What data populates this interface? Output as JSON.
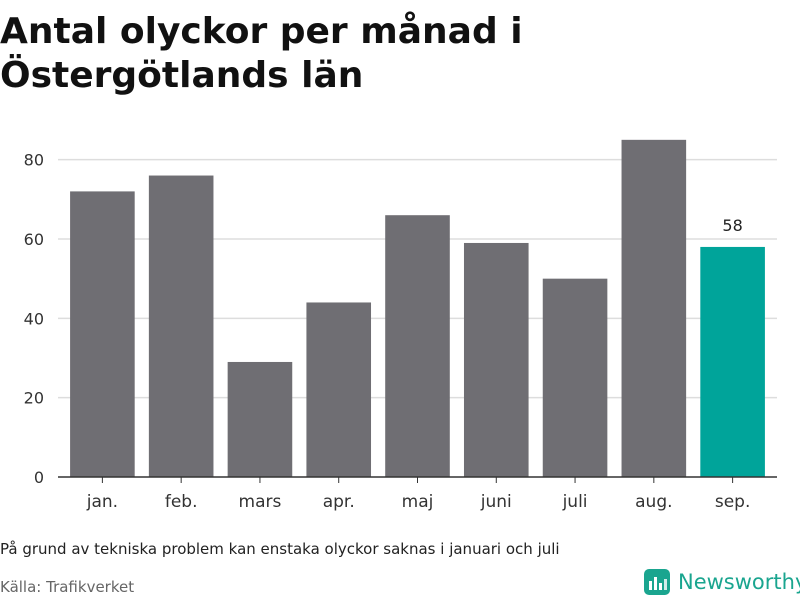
{
  "title": "Antal olyckor per månad i Östergötlands län",
  "note": "På grund av tekniska problem kan enstaka olyckor saknas i januari och juli",
  "source": "Källa: Trafikverket",
  "brand": {
    "name": "Newsworthy",
    "icon": "bar-chart-logo-icon"
  },
  "colors": {
    "bar": "#6f6e73",
    "highlight": "#00a49a",
    "brand": "#1aa58f",
    "grid": "#dddddd"
  },
  "chart_data": {
    "type": "bar",
    "categories": [
      "jan.",
      "feb.",
      "mars",
      "apr.",
      "maj",
      "juni",
      "juli",
      "aug.",
      "sep."
    ],
    "values": [
      72,
      76,
      29,
      44,
      66,
      59,
      50,
      85,
      58
    ],
    "highlight_index": 8,
    "data_labels": [
      "",
      "",
      "",
      "",
      "",
      "",
      "",
      "",
      "58"
    ],
    "yticks": [
      "0",
      "20",
      "40",
      "60",
      "80"
    ],
    "ylim": [
      0,
      90
    ],
    "grid": true,
    "xlabel": "",
    "ylabel": ""
  }
}
